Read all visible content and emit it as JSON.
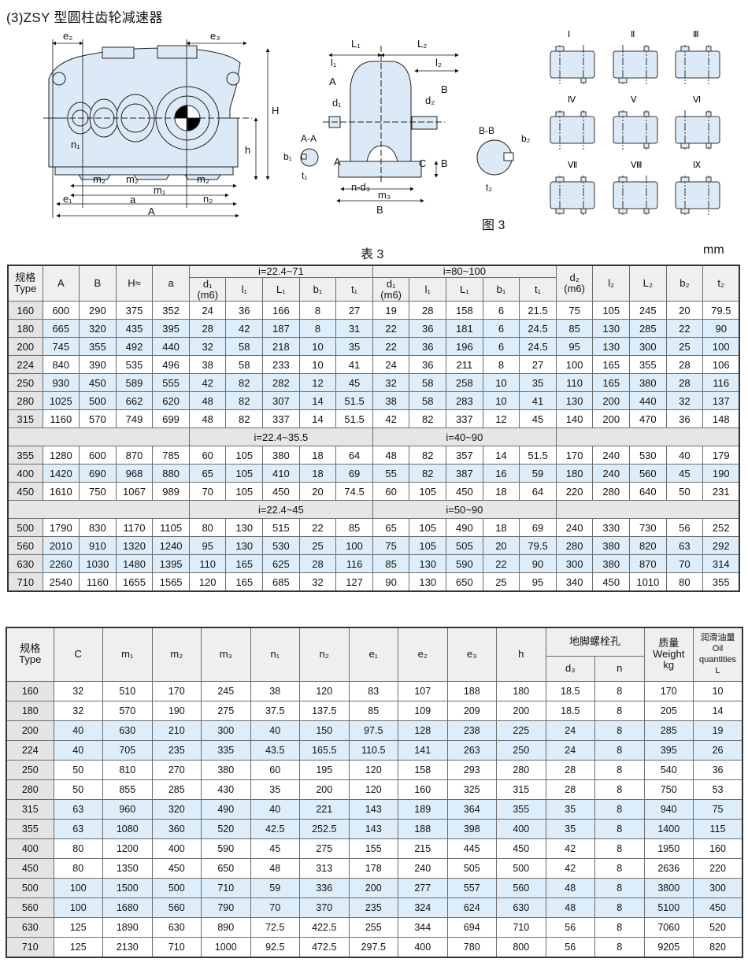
{
  "title": "(3)ZSY 型圆柱齿轮减速器",
  "figure_caption": "图 3",
  "table_caption": "表 3",
  "unit": "mm",
  "drawing": {
    "front_labels": {
      "e2": "e₂",
      "e3": "e₃",
      "H": "H",
      "h": "h",
      "n1": "n₁",
      "m2": "m₂",
      "m1": "m₁",
      "e1": "e₁",
      "a": "a",
      "n2": "n₂",
      "A": "A"
    },
    "side_labels": {
      "L1": "L₁",
      "L2": "L₂",
      "l1": "l₁",
      "l2": "l₂",
      "A_top": "A",
      "A_bottom": "A",
      "d1": "d₁",
      "d2": "d₂",
      "B_top": "B",
      "B_bottom": "B",
      "C": "C",
      "nd3": "n-d₃",
      "m3": "m₃",
      "B": "B"
    },
    "section_labels": {
      "AA": "A-A",
      "b1": "b₁",
      "t1": "t₁",
      "BB": "B-B",
      "b2": "b₂",
      "t2": "t₂"
    },
    "mounting_positions": [
      "Ⅰ",
      "Ⅱ",
      "Ⅲ",
      "Ⅳ",
      "Ⅴ",
      "Ⅵ",
      "Ⅶ",
      "Ⅷ",
      "Ⅸ"
    ],
    "body_color": "#dce9f6"
  },
  "table1": {
    "head": {
      "type": [
        "规格",
        "Type"
      ],
      "A": "A",
      "B": "B",
      "H": "H≈",
      "a": "a",
      "group1": "i=22.4~71",
      "group2": "i=80~100",
      "d2": [
        "d₂",
        "(m6)"
      ],
      "l2": "l₂",
      "L2": "L₂",
      "b2": "b₂",
      "t2": "t₂",
      "sub": [
        [
          "d₁",
          "(m6)"
        ],
        "l₁",
        "L₁",
        "b₁",
        "t₁",
        [
          "d₁",
          "(m6)"
        ],
        "l₁",
        "L₁",
        "b₁",
        "t₁"
      ]
    },
    "rows": [
      {
        "cells": [
          "160",
          "600",
          "290",
          "375",
          "352",
          "24",
          "36",
          "166",
          "8",
          "27",
          "19",
          "28",
          "158",
          "6",
          "21.5",
          "75",
          "105",
          "245",
          "20",
          "79.5"
        ]
      },
      {
        "cells": [
          "180",
          "665",
          "320",
          "435",
          "395",
          "28",
          "42",
          "187",
          "8",
          "31",
          "22",
          "36",
          "181",
          "6",
          "24.5",
          "85",
          "130",
          "285",
          "22",
          "90"
        ]
      },
      {
        "cells": [
          "200",
          "745",
          "355",
          "492",
          "440",
          "32",
          "58",
          "218",
          "10",
          "35",
          "22",
          "36",
          "196",
          "6",
          "24.5",
          "95",
          "130",
          "300",
          "25",
          "100"
        ]
      },
      {
        "cells": [
          "224",
          "840",
          "390",
          "535",
          "496",
          "38",
          "58",
          "233",
          "10",
          "41",
          "24",
          "36",
          "211",
          "8",
          "27",
          "100",
          "165",
          "355",
          "28",
          "106"
        ]
      },
      {
        "cells": [
          "250",
          "930",
          "450",
          "589",
          "555",
          "42",
          "82",
          "282",
          "12",
          "45",
          "32",
          "58",
          "258",
          "10",
          "35",
          "110",
          "165",
          "380",
          "28",
          "116"
        ]
      },
      {
        "cells": [
          "280",
          "1025",
          "500",
          "662",
          "620",
          "48",
          "82",
          "307",
          "14",
          "51.5",
          "38",
          "58",
          "283",
          "10",
          "41",
          "130",
          "200",
          "440",
          "32",
          "137"
        ]
      },
      {
        "cells": [
          "315",
          "1160",
          "570",
          "749",
          "699",
          "48",
          "82",
          "337",
          "14",
          "51.5",
          "42",
          "82",
          "337",
          "12",
          "45",
          "140",
          "200",
          "470",
          "36",
          "148"
        ]
      },
      {
        "sep": [
          "i=22.4~35.5",
          "i=40~90"
        ]
      },
      {
        "cells": [
          "355",
          "1280",
          "600",
          "870",
          "785",
          "60",
          "105",
          "380",
          "18",
          "64",
          "48",
          "82",
          "357",
          "14",
          "51.5",
          "170",
          "240",
          "530",
          "40",
          "179"
        ]
      },
      {
        "cells": [
          "400",
          "1420",
          "690",
          "968",
          "880",
          "65",
          "105",
          "410",
          "18",
          "69",
          "55",
          "82",
          "387",
          "16",
          "59",
          "180",
          "240",
          "560",
          "45",
          "190"
        ]
      },
      {
        "cells": [
          "450",
          "1610",
          "750",
          "1067",
          "989",
          "70",
          "105",
          "450",
          "20",
          "74.5",
          "60",
          "105",
          "450",
          "18",
          "64",
          "220",
          "280",
          "640",
          "50",
          "231"
        ]
      },
      {
        "sep": [
          "i=22.4~45",
          "i=50~90"
        ]
      },
      {
        "cells": [
          "500",
          "1790",
          "830",
          "1170",
          "1105",
          "80",
          "130",
          "515",
          "22",
          "85",
          "65",
          "105",
          "490",
          "18",
          "69",
          "240",
          "330",
          "730",
          "56",
          "252"
        ]
      },
      {
        "cells": [
          "560",
          "2010",
          "910",
          "1320",
          "1240",
          "95",
          "130",
          "530",
          "25",
          "100",
          "75",
          "105",
          "505",
          "20",
          "79.5",
          "280",
          "380",
          "820",
          "63",
          "292"
        ]
      },
      {
        "cells": [
          "630",
          "2260",
          "1030",
          "1480",
          "1395",
          "110",
          "165",
          "625",
          "28",
          "116",
          "85",
          "130",
          "590",
          "22",
          "90",
          "300",
          "380",
          "870",
          "70",
          "314"
        ]
      },
      {
        "cells": [
          "710",
          "2540",
          "1160",
          "1655",
          "1565",
          "120",
          "165",
          "685",
          "32",
          "127",
          "90",
          "130",
          "650",
          "25",
          "95",
          "340",
          "450",
          "1010",
          "80",
          "355"
        ]
      }
    ]
  },
  "table2": {
    "head": {
      "type": [
        "规格",
        "Type"
      ],
      "cols": [
        "C",
        "m₁",
        "m₂",
        "m₃",
        "n₁",
        "n₂",
        "e₁",
        "e₂",
        "e₃",
        "h"
      ],
      "bolt_group": "地脚螺栓孔",
      "bolt_cols": [
        "d₃",
        "n"
      ],
      "weight": [
        "质量",
        "Weight",
        "kg"
      ],
      "oil": [
        "润滑油量",
        "Oil",
        "quantities",
        "L"
      ]
    },
    "rows": [
      [
        "160",
        "32",
        "510",
        "170",
        "245",
        "38",
        "120",
        "83",
        "107",
        "188",
        "180",
        "18.5",
        "8",
        "170",
        "10"
      ],
      [
        "180",
        "32",
        "570",
        "190",
        "275",
        "37.5",
        "137.5",
        "85",
        "109",
        "209",
        "200",
        "18.5",
        "8",
        "205",
        "14"
      ],
      [
        "200",
        "40",
        "630",
        "210",
        "300",
        "40",
        "150",
        "97.5",
        "128",
        "238",
        "225",
        "24",
        "8",
        "285",
        "19"
      ],
      [
        "224",
        "40",
        "705",
        "235",
        "335",
        "43.5",
        "165.5",
        "110.5",
        "141",
        "263",
        "250",
        "24",
        "8",
        "395",
        "26"
      ],
      [
        "250",
        "50",
        "810",
        "270",
        "380",
        "60",
        "195",
        "120",
        "158",
        "293",
        "280",
        "28",
        "8",
        "540",
        "36"
      ],
      [
        "280",
        "50",
        "855",
        "285",
        "430",
        "35",
        "200",
        "120",
        "160",
        "325",
        "315",
        "28",
        "8",
        "750",
        "53"
      ],
      [
        "315",
        "63",
        "960",
        "320",
        "490",
        "40",
        "221",
        "143",
        "189",
        "364",
        "355",
        "35",
        "8",
        "940",
        "75"
      ],
      [
        "355",
        "63",
        "1080",
        "360",
        "520",
        "42.5",
        "252.5",
        "143",
        "188",
        "398",
        "400",
        "35",
        "8",
        "1400",
        "115"
      ],
      [
        "400",
        "80",
        "1200",
        "400",
        "590",
        "45",
        "275",
        "155",
        "215",
        "445",
        "450",
        "42",
        "8",
        "1950",
        "160"
      ],
      [
        "450",
        "80",
        "1350",
        "450",
        "650",
        "48",
        "313",
        "178",
        "240",
        "505",
        "500",
        "42",
        "8",
        "2636",
        "220"
      ],
      [
        "500",
        "100",
        "1500",
        "500",
        "710",
        "59",
        "336",
        "200",
        "277",
        "557",
        "560",
        "48",
        "8",
        "3800",
        "300"
      ],
      [
        "560",
        "100",
        "1680",
        "560",
        "790",
        "70",
        "370",
        "235",
        "324",
        "624",
        "630",
        "48",
        "8",
        "5100",
        "450"
      ],
      [
        "630",
        "125",
        "1890",
        "630",
        "890",
        "72.5",
        "422.5",
        "255",
        "344",
        "694",
        "710",
        "56",
        "8",
        "7060",
        "520"
      ],
      [
        "710",
        "125",
        "2130",
        "710",
        "1000",
        "92.5",
        "472.5",
        "297.5",
        "400",
        "780",
        "800",
        "56",
        "8",
        "9205",
        "820"
      ]
    ]
  }
}
